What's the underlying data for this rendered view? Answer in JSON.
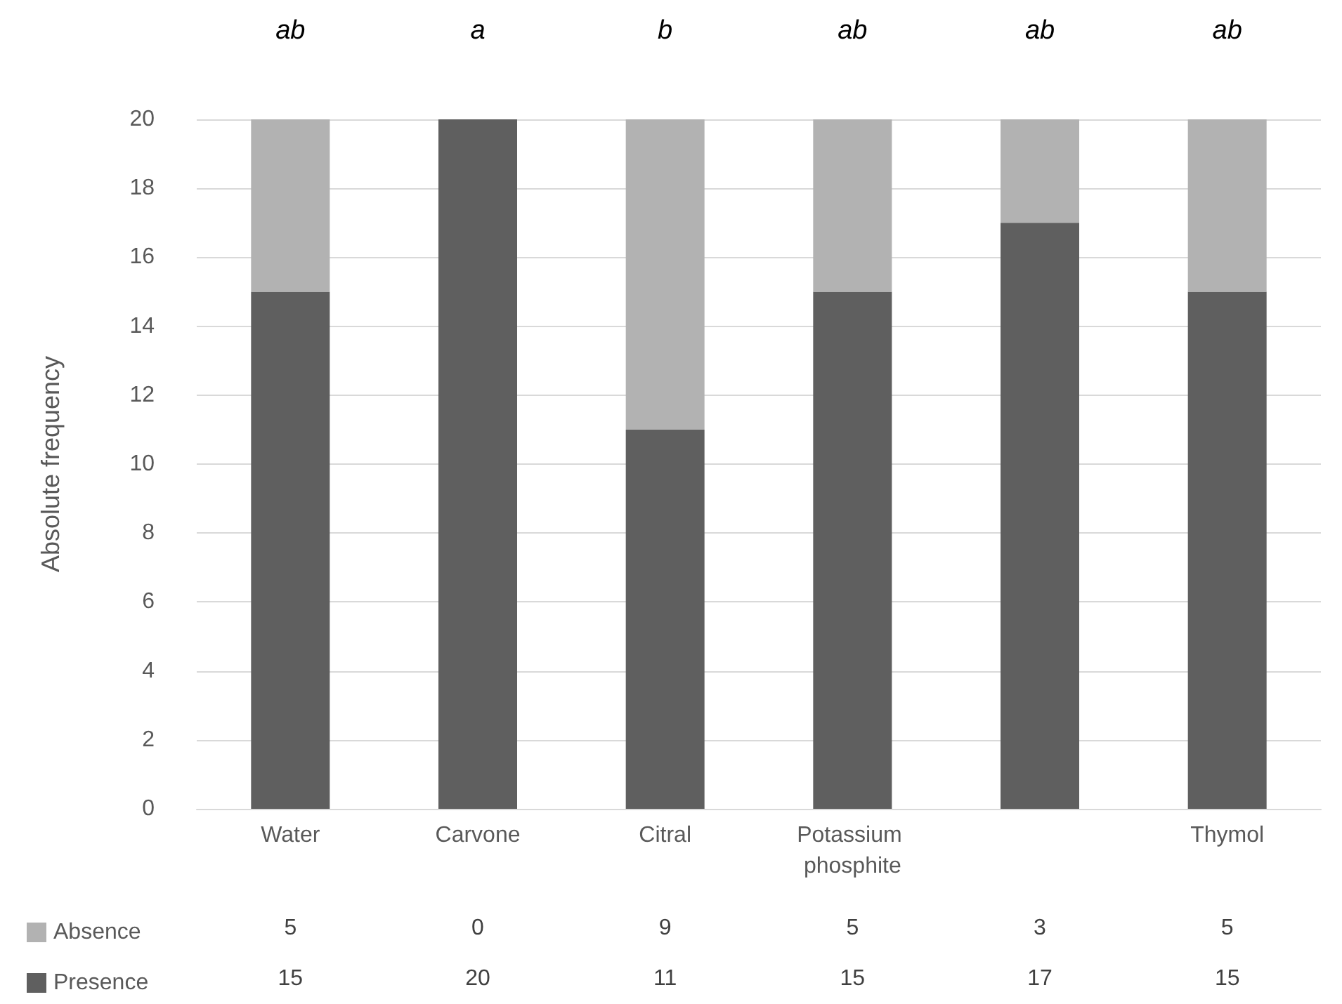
{
  "chart_data": {
    "type": "bar",
    "stacked": true,
    "ylabel": "Absolute frequency",
    "categories": [
      "Water",
      "Carvone",
      "Citral",
      "Potassium phosphite",
      null,
      "Thymol"
    ],
    "series": [
      {
        "name": "Presence",
        "color": "#5f5f5f",
        "values": [
          15,
          20,
          11,
          15,
          17,
          15
        ]
      },
      {
        "name": "Absence",
        "color": "#b2b2b2",
        "values": [
          5,
          0,
          9,
          5,
          3,
          5
        ]
      }
    ],
    "ylim": [
      0,
      20
    ],
    "yticks": [
      0,
      2,
      4,
      6,
      8,
      10,
      12,
      14,
      16,
      18,
      20
    ],
    "grid": "y",
    "legend": "bottom",
    "data_labels": true,
    "annotations": [
      "ab",
      "a",
      "b",
      "ab",
      "ab",
      "ab"
    ]
  }
}
